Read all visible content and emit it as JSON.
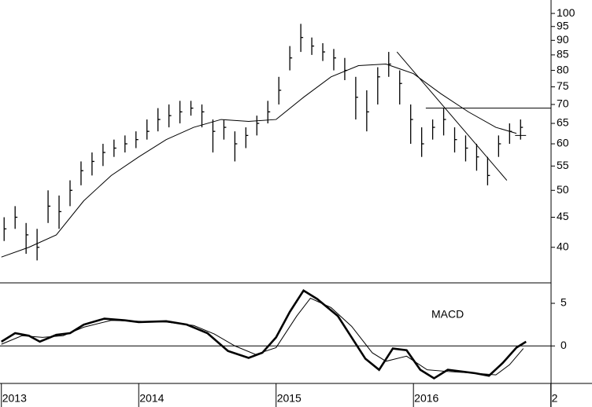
{
  "chart_data": [
    {
      "type": "ohlc",
      "x": [
        2013.02,
        2013.1,
        2013.18,
        2013.26,
        2013.34,
        2013.42,
        2013.5,
        2013.58,
        2013.66,
        2013.74,
        2013.82,
        2013.9,
        2013.98,
        2014.06,
        2014.14,
        2014.22,
        2014.3,
        2014.38,
        2014.46,
        2014.54,
        2014.62,
        2014.7,
        2014.78,
        2014.86,
        2014.94,
        2015.02,
        2015.1,
        2015.18,
        2015.26,
        2015.34,
        2015.42,
        2015.5,
        2015.58,
        2015.66,
        2015.74,
        2015.82,
        2015.9,
        2015.98,
        2016.06,
        2016.14,
        2016.22,
        2016.3,
        2016.38,
        2016.46,
        2016.54,
        2016.62,
        2016.7,
        2016.78
      ],
      "high": [
        45,
        47,
        44,
        43,
        50,
        49,
        52,
        56,
        58,
        60,
        61,
        62,
        63,
        66,
        69,
        70,
        71,
        71,
        70,
        66,
        66,
        63,
        64,
        67,
        71,
        78,
        88,
        96,
        91,
        89,
        87,
        84,
        78,
        74,
        81,
        86,
        80,
        70,
        64,
        66,
        69,
        64,
        62,
        60,
        57,
        62,
        65,
        66
      ],
      "low": [
        41,
        43,
        39,
        38,
        44,
        43,
        47,
        51,
        53,
        55,
        57,
        58,
        59,
        61,
        63,
        64,
        65,
        67,
        64,
        58,
        61,
        56,
        59,
        62,
        65,
        70,
        80,
        86,
        85,
        83,
        80,
        77,
        66,
        63,
        70,
        78,
        70,
        60,
        57,
        61,
        62,
        58,
        56,
        54,
        51,
        57,
        60,
        61
      ],
      "close": [
        43,
        45,
        42,
        40,
        47,
        46,
        50,
        54,
        56,
        58,
        59,
        60,
        61,
        63,
        66,
        67,
        68,
        69,
        68,
        63,
        64,
        60,
        62,
        65,
        68,
        74,
        84,
        91,
        88,
        86,
        84,
        80,
        72,
        68,
        78,
        82,
        76,
        66,
        60,
        64,
        66,
        61,
        59,
        57,
        53,
        60,
        63,
        64
      ],
      "color": "#000000",
      "series": [
        {
          "color": "#000000",
          "x": [
            2013.0,
            2013.2,
            2013.4,
            2013.6,
            2013.8,
            2014.0,
            2014.2,
            2014.4,
            2014.6,
            2014.8,
            2015.0,
            2015.2,
            2015.4,
            2015.6,
            2015.8,
            2016.0,
            2016.2,
            2016.4,
            2016.6,
            2016.75
          ],
          "values": [
            38.5,
            40,
            42,
            48,
            53,
            57,
            61,
            64,
            66,
            65.5,
            66,
            72,
            78,
            81.5,
            82,
            79,
            73,
            68,
            64,
            62.5
          ]
        }
      ],
      "trendlines": [
        {
          "x": [
            2015.88,
            2016.68
          ],
          "values": [
            86,
            52
          ]
        },
        {
          "x": [
            2016.09,
            2017.0
          ],
          "values": [
            69,
            69
          ]
        },
        {
          "x": [
            2016.74,
            2016.82
          ],
          "values": [
            62,
            62
          ]
        }
      ],
      "log_scale": true,
      "xlim": [
        2012.99,
        2017.3
      ],
      "ylim": [
        34.8,
        105.4
      ],
      "yticks": [
        40,
        45,
        50,
        55,
        60,
        65,
        70,
        75,
        80,
        85,
        90,
        95,
        100
      ]
    },
    {
      "type": "line",
      "annotation": "MACD",
      "series": [
        {
          "color": "#000000",
          "x": [
            2013.0,
            2013.1,
            2013.2,
            2013.28,
            2013.4,
            2013.5,
            2013.6,
            2013.75,
            2013.9,
            2014.0,
            2014.2,
            2014.35,
            2014.5,
            2014.65,
            2014.8,
            2014.9,
            2015.0,
            2015.1,
            2015.2,
            2015.3,
            2015.45,
            2015.55,
            2015.65,
            2015.75,
            2015.85,
            2015.95,
            2016.05,
            2016.15,
            2016.25,
            2016.45,
            2016.55,
            2016.65,
            2016.75,
            2016.82
          ],
          "values": [
            0.5,
            1.5,
            1.2,
            0.5,
            1.3,
            1.5,
            2.5,
            3.2,
            3.0,
            2.8,
            2.9,
            2.5,
            1.5,
            -0.6,
            -1.4,
            -0.8,
            1.0,
            4,
            6.5,
            5.5,
            3.5,
            1.0,
            -1.5,
            -2.8,
            -0.3,
            -0.5,
            -2.8,
            -3.8,
            -2.8,
            -3.2,
            -3.5,
            -2.0,
            -0.2,
            0.5
          ]
        },
        {
          "color": "#000000",
          "x": [
            2013.0,
            2013.15,
            2013.3,
            2013.45,
            2013.6,
            2013.8,
            2014.0,
            2014.2,
            2014.4,
            2014.55,
            2014.7,
            2014.85,
            2015.0,
            2015.15,
            2015.25,
            2015.4,
            2015.55,
            2015.7,
            2015.8,
            2015.95,
            2016.1,
            2016.25,
            2016.45,
            2016.6,
            2016.7,
            2016.8
          ],
          "values": [
            0.2,
            1.2,
            1.0,
            1.2,
            2.2,
            3.0,
            2.9,
            2.8,
            2.4,
            1.4,
            0.0,
            -1.0,
            -0.2,
            3.5,
            5.6,
            4.5,
            2.3,
            -0.8,
            -1.8,
            -1.2,
            -2.8,
            -3.0,
            -3.2,
            -3.4,
            -2.2,
            -0.3
          ]
        }
      ],
      "xlim": [
        2012.99,
        2017.3
      ],
      "ylim": [
        -4.4,
        7.4
      ],
      "yticks": [
        0,
        5
      ],
      "xticks": [
        2013,
        2014,
        2015,
        2016,
        {
          "value": 2017,
          "label": "2"
        }
      ]
    }
  ]
}
